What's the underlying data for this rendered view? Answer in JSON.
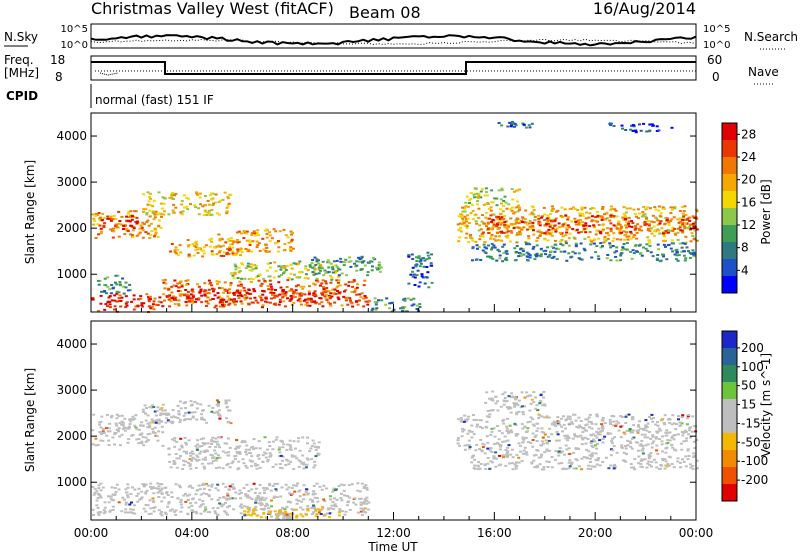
{
  "header": {
    "station": "Christmas Valley West (fitACF)",
    "beam": "Beam 08",
    "date": "16/Aug/2014"
  },
  "top_strip": {
    "nsky_label": "N.Sky",
    "nsky_ticks": [
      "10^5",
      "10^0"
    ],
    "nsearch_label": "N.Search",
    "nsearch_ticks": [
      "10^5",
      "10^0"
    ],
    "freq_label_1": "Freq.",
    "freq_label_2": "[MHz]",
    "freq_ticks": [
      "18",
      "8"
    ],
    "nave_label": "Nave",
    "nave_ticks": [
      "60",
      "0"
    ],
    "cpid_label": "CPID",
    "cpid_value": "normal (fast) 151 IF"
  },
  "colors": {
    "power_scale": [
      "#0000ff",
      "#1e50c8",
      "#2e7a80",
      "#3f9e55",
      "#8ec84a",
      "#f2d800",
      "#f5a800",
      "#f07800",
      "#e83800",
      "#e00000"
    ],
    "velocity_scale": [
      "#e00000",
      "#f05000",
      "#f08a00",
      "#f5b800",
      "#bebebe",
      "#bebebe",
      "#6cc43a",
      "#2e8a5c",
      "#2a6496",
      "#1a28c8"
    ],
    "ground_scatter": "#bebebe"
  },
  "chart_data": [
    {
      "type": "heatmap",
      "panel": "power",
      "xlabel": "",
      "ylabel": "Slant Range [km]",
      "x_ticks": [
        "00:00",
        "04:00",
        "08:00",
        "12:00",
        "16:00",
        "20:00",
        "00:00"
      ],
      "x_range_hours": [
        0,
        24
      ],
      "y_ticks": [
        1000,
        2000,
        3000,
        4000
      ],
      "ylim": [
        180,
        4500
      ],
      "colorbar_label": "Power [dB]",
      "colorbar_ticks": [
        "4",
        "8",
        "12",
        "16",
        "20",
        "24",
        "28"
      ],
      "colorbar_range": [
        0,
        30
      ],
      "regions": [
        {
          "t": [
            0.0,
            2.8
          ],
          "r": [
            200,
            600
          ],
          "value": 27
        },
        {
          "t": [
            2.8,
            11.0
          ],
          "r": [
            300,
            900
          ],
          "value": 24
        },
        {
          "t": [
            3.0,
            10.0
          ],
          "r": [
            400,
            700
          ],
          "value": 28
        },
        {
          "t": [
            11.0,
            13.0
          ],
          "r": [
            200,
            500
          ],
          "value": 9
        },
        {
          "t": [
            0.0,
            2.8
          ],
          "r": [
            1800,
            2400
          ],
          "value": 21
        },
        {
          "t": [
            0.3,
            2.0
          ],
          "r": [
            2000,
            2300
          ],
          "value": 27
        },
        {
          "t": [
            2.0,
            5.5
          ],
          "r": [
            2300,
            2800
          ],
          "value": 17
        },
        {
          "t": [
            3.0,
            6.0
          ],
          "r": [
            1400,
            1800
          ],
          "value": 20
        },
        {
          "t": [
            5.0,
            8.0
          ],
          "r": [
            1500,
            2000
          ],
          "value": 21
        },
        {
          "t": [
            5.5,
            10.0
          ],
          "r": [
            900,
            1300
          ],
          "value": 14
        },
        {
          "t": [
            8.5,
            11.5
          ],
          "r": [
            1000,
            1400
          ],
          "value": 10
        },
        {
          "t": [
            0.2,
            1.5
          ],
          "r": [
            600,
            1000
          ],
          "value": 9
        },
        {
          "t": [
            12.5,
            13.5
          ],
          "r": [
            700,
            1500
          ],
          "value": 6
        },
        {
          "t": [
            14.5,
            24.0
          ],
          "r": [
            1700,
            2500
          ],
          "value": 19
        },
        {
          "t": [
            15.5,
            24.0
          ],
          "r": [
            1900,
            2300
          ],
          "value": 25
        },
        {
          "t": [
            15.0,
            24.0
          ],
          "r": [
            1300,
            1700
          ],
          "value": 8
        },
        {
          "t": [
            14.8,
            17.0
          ],
          "r": [
            2500,
            2900
          ],
          "value": 15
        },
        {
          "t": [
            20.5,
            23.0
          ],
          "r": [
            4100,
            4300
          ],
          "value": 5
        },
        {
          "t": [
            16.0,
            17.5
          ],
          "r": [
            4200,
            4350
          ],
          "value": 7
        }
      ]
    },
    {
      "type": "heatmap",
      "panel": "velocity",
      "xlabel": "Time UT",
      "ylabel": "Slant Range [km]",
      "x_ticks": [
        "00:00",
        "04:00",
        "08:00",
        "12:00",
        "16:00",
        "20:00",
        "00:00"
      ],
      "x_range_hours": [
        0,
        24
      ],
      "y_ticks": [
        1000,
        2000,
        3000,
        4000
      ],
      "ylim": [
        180,
        4500
      ],
      "colorbar_label": "Velocity [m s^-1]",
      "colorbar_ticks": [
        "200",
        "100",
        "50",
        "15",
        "-15",
        "-50",
        "-100",
        "-200"
      ],
      "colorbar_range": [
        -250,
        250
      ],
      "regions": [
        {
          "t": [
            0.0,
            2.8
          ],
          "r": [
            1800,
            2500
          ],
          "value": 0
        },
        {
          "t": [
            0.0,
            11.0
          ],
          "r": [
            300,
            1000
          ],
          "value": 0
        },
        {
          "t": [
            3.0,
            9.0
          ],
          "r": [
            1300,
            2000
          ],
          "value": 0
        },
        {
          "t": [
            2.0,
            5.5
          ],
          "r": [
            2300,
            2800
          ],
          "value": 0
        },
        {
          "t": [
            6.0,
            10.0
          ],
          "r": [
            250,
            450
          ],
          "value": -60
        },
        {
          "t": [
            7.0,
            8.0
          ],
          "r": [
            200,
            330
          ],
          "value": 40
        },
        {
          "t": [
            14.5,
            24.0
          ],
          "r": [
            1700,
            2500
          ],
          "value": 0
        },
        {
          "t": [
            15.0,
            24.0
          ],
          "r": [
            1300,
            1700
          ],
          "value": 0
        },
        {
          "t": [
            15.5,
            18.0
          ],
          "r": [
            2500,
            3000
          ],
          "value": 0
        }
      ]
    }
  ]
}
